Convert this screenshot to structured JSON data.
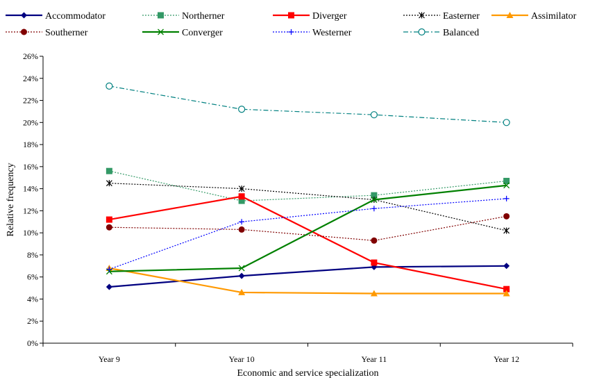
{
  "chart_data": {
    "type": "line",
    "categories": [
      "Year 9",
      "Year 10",
      "Year 11",
      "Year 12"
    ],
    "xlabel": "Economic and service specialization",
    "ylabel": "Relative frequency",
    "ylim": [
      0,
      26
    ],
    "ytick_step": 2,
    "ytick_format": "percent",
    "grid": false,
    "legend_position": "top",
    "series": [
      {
        "name": "Accommodator",
        "color": "#000080",
        "dash": "solid",
        "marker": "diamond",
        "values": [
          5.1,
          6.1,
          6.9,
          7.0
        ]
      },
      {
        "name": "Northerner",
        "color": "#339966",
        "dash": "dotted",
        "marker": "square",
        "values": [
          15.6,
          12.9,
          13.4,
          14.7
        ]
      },
      {
        "name": "Diverger",
        "color": "#FF0000",
        "dash": "solid",
        "marker": "square",
        "values": [
          11.2,
          13.3,
          7.3,
          4.9
        ]
      },
      {
        "name": "Easterner",
        "color": "#000000",
        "dash": "dotted",
        "marker": "asterisk",
        "values": [
          14.5,
          14.0,
          13.0,
          10.2
        ]
      },
      {
        "name": "Assimilator",
        "color": "#FF9900",
        "dash": "solid",
        "marker": "triangle",
        "values": [
          6.8,
          4.6,
          4.5,
          4.5
        ]
      },
      {
        "name": "Southerner",
        "color": "#800000",
        "dash": "dotted",
        "marker": "circle",
        "values": [
          10.5,
          10.3,
          9.3,
          11.5
        ]
      },
      {
        "name": "Converger",
        "color": "#008000",
        "dash": "solid",
        "marker": "x",
        "values": [
          6.5,
          6.8,
          13.0,
          14.3
        ]
      },
      {
        "name": "Westerner",
        "color": "#0000FF",
        "dash": "dotted",
        "marker": "plus",
        "values": [
          6.7,
          11.0,
          12.2,
          13.1
        ]
      },
      {
        "name": "Balanced",
        "color": "#008080",
        "dash": "dashdot",
        "marker": "open-circle",
        "values": [
          23.3,
          21.2,
          20.7,
          20.0
        ]
      }
    ]
  }
}
